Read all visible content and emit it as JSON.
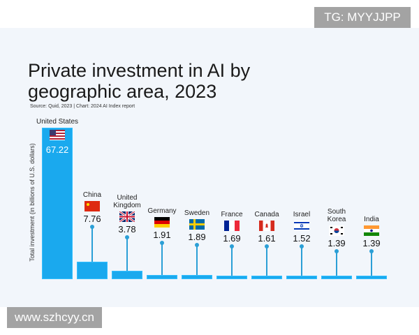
{
  "watermarks": {
    "top": "TG: MYYJJPP",
    "bottom": "www.szhcyy.cn"
  },
  "chart_data": {
    "type": "bar",
    "title": "Private investment in AI by geographic area, 2023",
    "source": "Source: Quid, 2023 | Chart: 2024 AI Index report",
    "ylabel": "Total investment (in billions of U.S. dollars)",
    "xlabel": "",
    "categories": [
      "United States",
      "China",
      "United Kingdom",
      "Germany",
      "Sweden",
      "France",
      "Canada",
      "Israel",
      "South Korea",
      "India"
    ],
    "values": [
      67.22,
      7.76,
      3.78,
      1.91,
      1.89,
      1.69,
      1.61,
      1.52,
      1.39,
      1.39
    ],
    "value_labels": [
      "67.22",
      "7.76",
      "3.78",
      "1.91",
      "1.89",
      "1.69",
      "1.61",
      "1.52",
      "1.39",
      "1.39"
    ],
    "ylim": [
      0,
      67.22
    ],
    "grid": false,
    "colors": {
      "bar": "#1aa9ee",
      "stem": "#2b9fd6",
      "background": "#f2f6fb"
    }
  }
}
